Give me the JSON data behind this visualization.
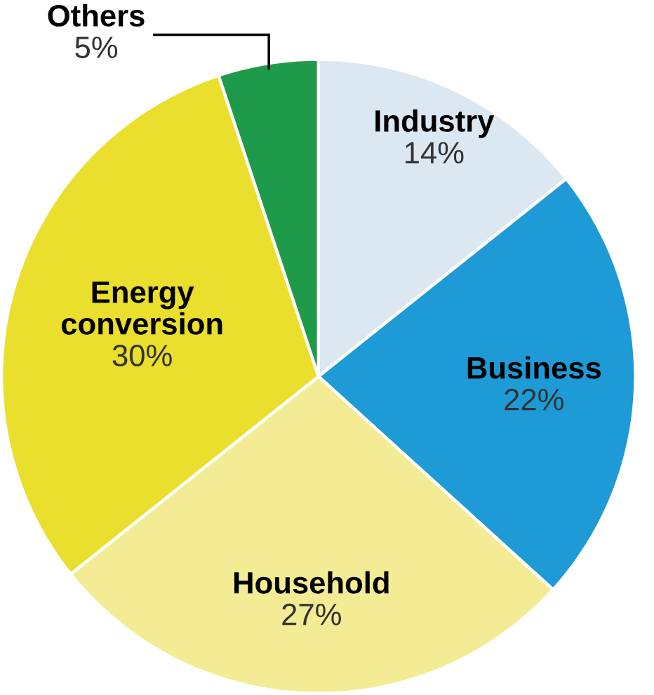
{
  "chart_data": {
    "type": "pie",
    "categories": [
      "Industry",
      "Business",
      "Household",
      "Energy conversion",
      "Others"
    ],
    "values": [
      14,
      22,
      27,
      30,
      5
    ],
    "value_labels": [
      "14%",
      "22%",
      "27%",
      "30%",
      "5%"
    ],
    "colors": [
      "#dbe8f1",
      "#1e9bd7",
      "#f4ec94",
      "#e9df2c",
      "#1f9a4b"
    ]
  }
}
